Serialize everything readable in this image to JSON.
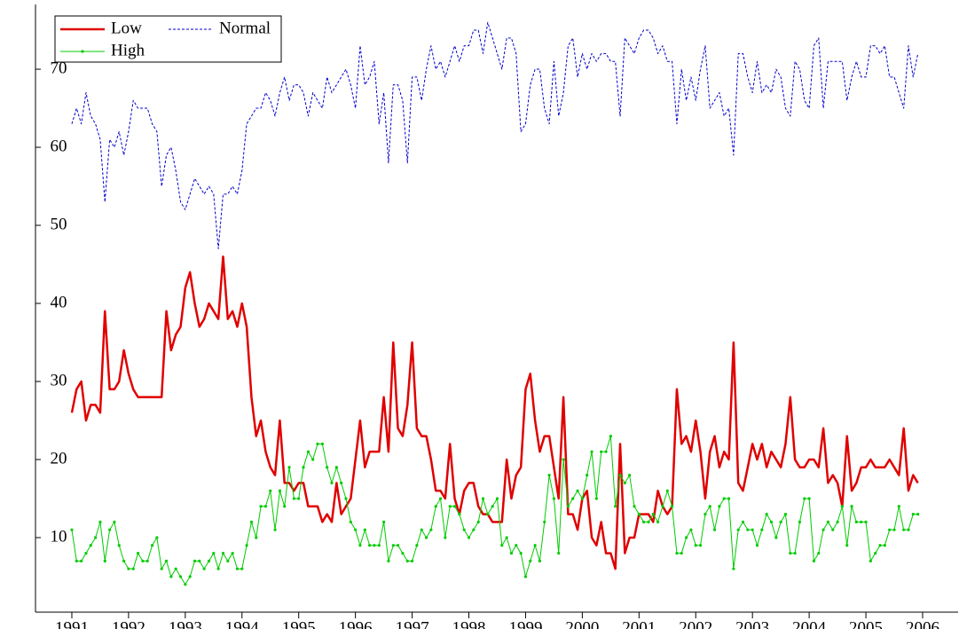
{
  "chart_data": {
    "type": "line",
    "x": [
      1991,
      1991.083,
      1991.167,
      1991.25,
      1991.333,
      1991.417,
      1991.5,
      1991.583,
      1991.667,
      1991.75,
      1991.833,
      1991.917,
      1992,
      1992.083,
      1992.167,
      1992.25,
      1992.333,
      1992.417,
      1992.5,
      1992.583,
      1992.667,
      1992.75,
      1992.833,
      1992.917,
      1993,
      1993.083,
      1993.167,
      1993.25,
      1993.333,
      1993.417,
      1993.5,
      1993.583,
      1993.667,
      1993.75,
      1993.833,
      1993.917,
      1994,
      1994.083,
      1994.167,
      1994.25,
      1994.333,
      1994.417,
      1994.5,
      1994.583,
      1994.667,
      1994.75,
      1994.833,
      1994.917,
      1995,
      1995.083,
      1995.167,
      1995.25,
      1995.333,
      1995.417,
      1995.5,
      1995.583,
      1995.667,
      1995.75,
      1995.833,
      1995.917,
      1996,
      1996.083,
      1996.167,
      1996.25,
      1996.333,
      1996.417,
      1996.5,
      1996.583,
      1996.667,
      1996.75,
      1996.833,
      1996.917,
      1997,
      1997.083,
      1997.167,
      1997.25,
      1997.333,
      1997.417,
      1997.5,
      1997.583,
      1997.667,
      1997.75,
      1997.833,
      1997.917,
      1998,
      1998.083,
      1998.167,
      1998.25,
      1998.333,
      1998.417,
      1998.5,
      1998.583,
      1998.667,
      1998.75,
      1998.833,
      1998.917,
      1999,
      1999.083,
      1999.167,
      1999.25,
      1999.333,
      1999.417,
      1999.5,
      1999.583,
      1999.667,
      1999.75,
      1999.833,
      1999.917,
      2000,
      2000.083,
      2000.167,
      2000.25,
      2000.333,
      2000.417,
      2000.5,
      2000.583,
      2000.667,
      2000.75,
      2000.833,
      2000.917,
      2001,
      2001.083,
      2001.167,
      2001.25,
      2001.333,
      2001.417,
      2001.5,
      2001.583,
      2001.667,
      2001.75,
      2001.833,
      2001.917,
      2002,
      2002.083,
      2002.167,
      2002.25,
      2002.333,
      2002.417,
      2002.5,
      2002.583,
      2002.667,
      2002.75,
      2002.833,
      2002.917,
      2003,
      2003.083,
      2003.167,
      2003.25,
      2003.333,
      2003.417,
      2003.5,
      2003.583,
      2003.667,
      2003.75,
      2003.833,
      2003.917,
      2004,
      2004.083,
      2004.167,
      2004.25,
      2004.333,
      2004.417,
      2004.5,
      2004.583,
      2004.667,
      2004.75,
      2004.833,
      2004.917,
      2005,
      2005.083,
      2005.167,
      2005.25,
      2005.333,
      2005.417,
      2005.5,
      2005.583,
      2005.667,
      2005.75,
      2005.833,
      2005.917
    ],
    "series": [
      {
        "name": "Low",
        "color": "#e00000",
        "line_style": "solid",
        "line_width": 2.5,
        "marker": false,
        "values": [
          26,
          29,
          30,
          25,
          27,
          27,
          26,
          39,
          29,
          29,
          30,
          34,
          31,
          29,
          28,
          28,
          28,
          28,
          28,
          28,
          39,
          34,
          36,
          37,
          42,
          44,
          40,
          37,
          38,
          40,
          39,
          38,
          46,
          38,
          39,
          37,
          40,
          37,
          28,
          23,
          25,
          21,
          19,
          18,
          25,
          17,
          17,
          16,
          17,
          17,
          14,
          14,
          14,
          12,
          13,
          12,
          17,
          13,
          14,
          15,
          20,
          25,
          19,
          21,
          21,
          21,
          28,
          21,
          35,
          24,
          23,
          27,
          35,
          24,
          23,
          23,
          20,
          16,
          16,
          15,
          22,
          15,
          13,
          16,
          17,
          17,
          14,
          13,
          13,
          12,
          12,
          12,
          20,
          15,
          18,
          19,
          29,
          31,
          25,
          21,
          23,
          23,
          19,
          15,
          28,
          13,
          13,
          11,
          15,
          16,
          10,
          9,
          12,
          8,
          8,
          6,
          22,
          8,
          10,
          10,
          13,
          13,
          13,
          12,
          16,
          14,
          13,
          14,
          29,
          22,
          23,
          21,
          25,
          21,
          15,
          21,
          23,
          19,
          21,
          20,
          35,
          17,
          16,
          19,
          22,
          20,
          22,
          19,
          21,
          20,
          19,
          22,
          28,
          20,
          19,
          19,
          20,
          20,
          19,
          24,
          17,
          18,
          17,
          14,
          23,
          16,
          17,
          19,
          19,
          20,
          19,
          19,
          19,
          20,
          19,
          18,
          24,
          16,
          18,
          17
        ]
      },
      {
        "name": "Normal",
        "color": "#0000cc",
        "line_style": "dashed",
        "line_width": 1,
        "marker": false,
        "values": [
          63,
          65,
          63,
          67,
          64,
          63,
          61,
          53,
          61,
          60,
          62,
          59,
          62,
          66,
          65,
          65,
          65,
          63,
          62,
          55,
          59,
          60,
          57,
          53,
          52,
          54,
          56,
          55,
          54,
          55,
          54,
          47,
          54,
          54,
          55,
          54,
          57,
          63,
          64,
          65,
          65,
          67,
          66,
          64,
          67,
          69,
          66,
          68,
          68,
          67,
          64,
          67,
          66,
          65,
          69,
          67,
          68,
          69,
          70,
          68,
          65,
          73,
          68,
          69,
          71,
          63,
          67,
          58,
          68,
          68,
          66,
          58,
          69,
          69,
          66,
          70,
          73,
          70,
          71,
          69,
          71,
          73,
          71,
          73,
          73,
          75,
          75,
          72,
          76,
          74,
          72,
          70,
          74,
          74,
          72,
          62,
          63,
          68,
          70,
          70,
          65,
          63,
          71,
          64,
          67,
          73,
          74,
          69,
          72,
          70,
          72,
          71,
          72,
          72,
          71,
          71,
          64,
          74,
          73,
          72,
          74,
          75,
          75,
          74,
          72,
          73,
          71,
          71,
          63,
          70,
          66,
          69,
          66,
          70,
          73,
          65,
          66,
          67,
          64,
          65,
          59,
          72,
          72,
          69,
          67,
          71,
          67,
          68,
          67,
          70,
          69,
          65,
          64,
          71,
          70,
          66,
          65,
          73,
          74,
          65,
          71,
          71,
          71,
          71,
          66,
          69,
          71,
          69,
          69,
          73,
          73,
          72,
          73,
          69,
          69,
          67,
          65,
          73,
          69,
          72
        ]
      },
      {
        "name": "High",
        "color": "#00cc00",
        "line_style": "solid",
        "line_width": 1,
        "marker": true,
        "values": [
          11,
          7,
          7,
          8,
          9,
          10,
          12,
          7,
          11,
          12,
          9,
          7,
          6,
          6,
          8,
          7,
          7,
          9,
          10,
          6,
          7,
          5,
          6,
          5,
          4,
          5,
          7,
          7,
          6,
          7,
          8,
          6,
          8,
          7,
          8,
          6,
          6,
          9,
          12,
          10,
          14,
          14,
          16,
          11,
          16,
          14,
          19,
          15,
          15,
          19,
          21,
          20,
          22,
          22,
          19,
          17,
          19,
          17,
          15,
          12,
          11,
          9,
          11,
          9,
          9,
          9,
          12,
          7,
          9,
          9,
          8,
          7,
          7,
          9,
          11,
          10,
          11,
          14,
          15,
          10,
          14,
          14,
          13,
          11,
          10,
          11,
          12,
          15,
          13,
          14,
          15,
          9,
          10,
          8,
          9,
          8,
          5,
          7,
          9,
          7,
          12,
          18,
          15,
          8,
          20,
          14,
          15,
          16,
          15,
          18,
          21,
          15,
          21,
          21,
          23,
          14,
          18,
          17,
          18,
          14,
          13,
          12,
          12,
          13,
          12,
          14,
          16,
          14,
          8,
          8,
          10,
          11,
          9,
          9,
          13,
          14,
          11,
          14,
          15,
          15,
          6,
          11,
          12,
          11,
          11,
          9,
          11,
          13,
          12,
          10,
          12,
          13,
          8,
          8,
          12,
          15,
          15,
          7,
          8,
          11,
          12,
          11,
          12,
          14,
          9,
          14,
          12,
          12,
          12,
          7,
          8,
          9,
          9,
          11,
          11,
          14,
          11,
          11,
          13,
          13
        ]
      }
    ],
    "xlim": [
      1990.359,
      2006.626
    ],
    "xticks": [
      1991,
      1992,
      1993,
      1994,
      1995,
      1996,
      1997,
      1998,
      1999,
      2000,
      2001,
      2002,
      2003,
      2004,
      2005,
      2006
    ],
    "ylim": [
      0.45,
      78.3
    ],
    "yticks": [
      10,
      20,
      30,
      40,
      50,
      60,
      70
    ],
    "grid": false,
    "legend": "upper left"
  }
}
